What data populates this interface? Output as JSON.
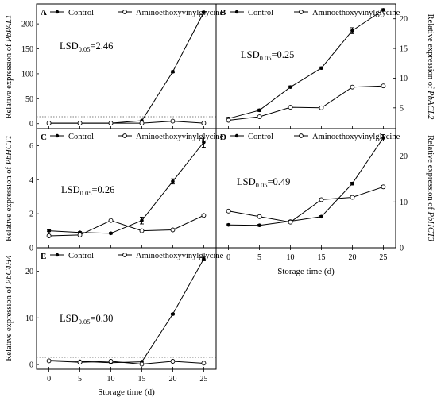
{
  "legend": {
    "control": "Control",
    "treated": "Aminoethoxyvinylglycine"
  },
  "xlabel": "Storage time (d)",
  "lsd_label": "LSD",
  "lsd_sub": "0.05",
  "colors": {
    "line": "#000000",
    "frame": "#000000",
    "zero_line": "#555555"
  },
  "chart_data": [
    {
      "type": "line",
      "letter": "A",
      "gene": "PbPAL1",
      "ylabel_prefix": "Relative expression of ",
      "lsd_value": "=2.46",
      "x": [
        0,
        5,
        10,
        15,
        20,
        25
      ],
      "xlim": [
        -2,
        27
      ],
      "ylim": [
        -10,
        240
      ],
      "yticks": [
        0,
        50,
        100,
        150,
        200
      ],
      "series": [
        {
          "name": "Control",
          "values": [
            1,
            1,
            1,
            6,
            104,
            223
          ],
          "errors": [
            0,
            0,
            0,
            1,
            2,
            2
          ]
        },
        {
          "name": "Aminoethoxyvinylglycine",
          "values": [
            1,
            1,
            1,
            1,
            5,
            1
          ],
          "errors": [
            0,
            0,
            0,
            0,
            1,
            0
          ]
        }
      ]
    },
    {
      "type": "line",
      "letter": "B",
      "gene": "PbACL2",
      "ylabel_prefix": "Relative expression of ",
      "lsd_value": "=0.25",
      "x": [
        0,
        5,
        10,
        15,
        20,
        25
      ],
      "xlim": [
        -2,
        27
      ],
      "ylim": [
        1.5,
        22.5
      ],
      "yticks": [
        5,
        10,
        15,
        20
      ],
      "series": [
        {
          "name": "Control",
          "values": [
            3.2,
            4.6,
            8.5,
            11.7,
            18.0,
            21.5
          ],
          "errors": [
            0.2,
            0.2,
            0.2,
            0.2,
            0.5,
            0.2
          ]
        },
        {
          "name": "Aminoethoxyvinylglycine",
          "values": [
            2.9,
            3.5,
            5.1,
            5.0,
            8.5,
            8.7
          ],
          "errors": [
            0.1,
            0.1,
            0.1,
            0.1,
            0.2,
            0.1
          ]
        }
      ]
    },
    {
      "type": "line",
      "letter": "C",
      "gene": "PbHCT1",
      "ylabel_prefix": "Relative expression of ",
      "lsd_value": "=0.26",
      "x": [
        0,
        5,
        10,
        15,
        20,
        25
      ],
      "xlim": [
        -2,
        27
      ],
      "ylim": [
        0,
        7
      ],
      "yticks": [
        0,
        2,
        4,
        6
      ],
      "series": [
        {
          "name": "Control",
          "values": [
            1.0,
            0.9,
            0.85,
            1.6,
            3.9,
            6.2
          ],
          "errors": [
            0.05,
            0.05,
            0.05,
            0.2,
            0.15,
            0.3
          ]
        },
        {
          "name": "Aminoethoxyvinylglycine",
          "values": [
            0.7,
            0.75,
            1.6,
            1.0,
            1.05,
            1.9
          ],
          "errors": [
            0.05,
            0.05,
            0.05,
            0.05,
            0.05,
            0.05
          ]
        }
      ]
    },
    {
      "type": "line",
      "letter": "D",
      "gene": "PbHCT3",
      "ylabel_prefix": "Relative expression of ",
      "lsd_value": "=0.49",
      "x": [
        0,
        5,
        10,
        15,
        20,
        25
      ],
      "xlim": [
        -2,
        27
      ],
      "ylim": [
        0,
        26
      ],
      "yticks": [
        0,
        10,
        20
      ],
      "series": [
        {
          "name": "Control",
          "values": [
            5.0,
            4.9,
            5.8,
            6.8,
            14.0,
            24.0
          ],
          "errors": [
            0.2,
            0.2,
            0.2,
            0.2,
            0.3,
            0.7
          ]
        },
        {
          "name": "Aminoethoxyvinylglycine",
          "values": [
            8.0,
            6.8,
            5.6,
            10.5,
            11.0,
            13.3
          ],
          "errors": [
            0.2,
            0.2,
            0.2,
            0.3,
            0.3,
            0.3
          ]
        }
      ]
    },
    {
      "type": "line",
      "letter": "E",
      "gene": "PbC4H4",
      "ylabel_prefix": "Relative expression of ",
      "lsd_value": "=0.30",
      "x": [
        0,
        5,
        10,
        15,
        20,
        25
      ],
      "xlim": [
        -2,
        27
      ],
      "ylim": [
        -1,
        25
      ],
      "yticks": [
        0,
        10,
        20
      ],
      "xticks": [
        0,
        5,
        10,
        15,
        20,
        25
      ],
      "series": [
        {
          "name": "Control",
          "values": [
            0.9,
            0.7,
            0.4,
            0.6,
            10.8,
            22.6
          ],
          "errors": [
            0.1,
            0.1,
            0.1,
            0.1,
            0.2,
            0.4
          ]
        },
        {
          "name": "Aminoethoxyvinylglycine",
          "values": [
            0.8,
            0.5,
            0.7,
            0.1,
            0.7,
            0.3
          ],
          "errors": [
            0.05,
            0.05,
            0.05,
            0.05,
            0.05,
            0.05
          ]
        }
      ]
    }
  ]
}
